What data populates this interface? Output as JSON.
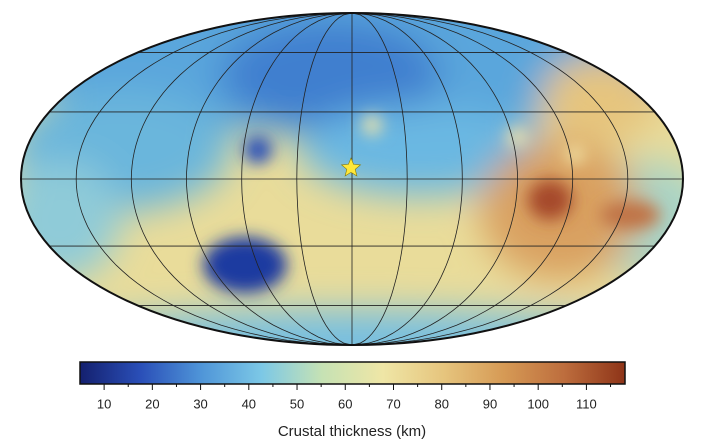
{
  "colorbar": {
    "label": "Crustal thickness (km)",
    "range": [
      5,
      118
    ],
    "ticks": [
      10,
      20,
      30,
      40,
      50,
      60,
      70,
      80,
      90,
      100,
      110
    ],
    "minor_ticks": [
      15,
      25,
      35,
      45,
      55,
      65,
      75,
      85,
      95,
      105,
      115
    ],
    "colormap": [
      "#14206e",
      "#2a4fb8",
      "#4f95d8",
      "#7cc8e6",
      "#c6e2b4",
      "#efe6a6",
      "#e6c57e",
      "#d69a55",
      "#bd6d3d",
      "#8e3418"
    ]
  }
}
